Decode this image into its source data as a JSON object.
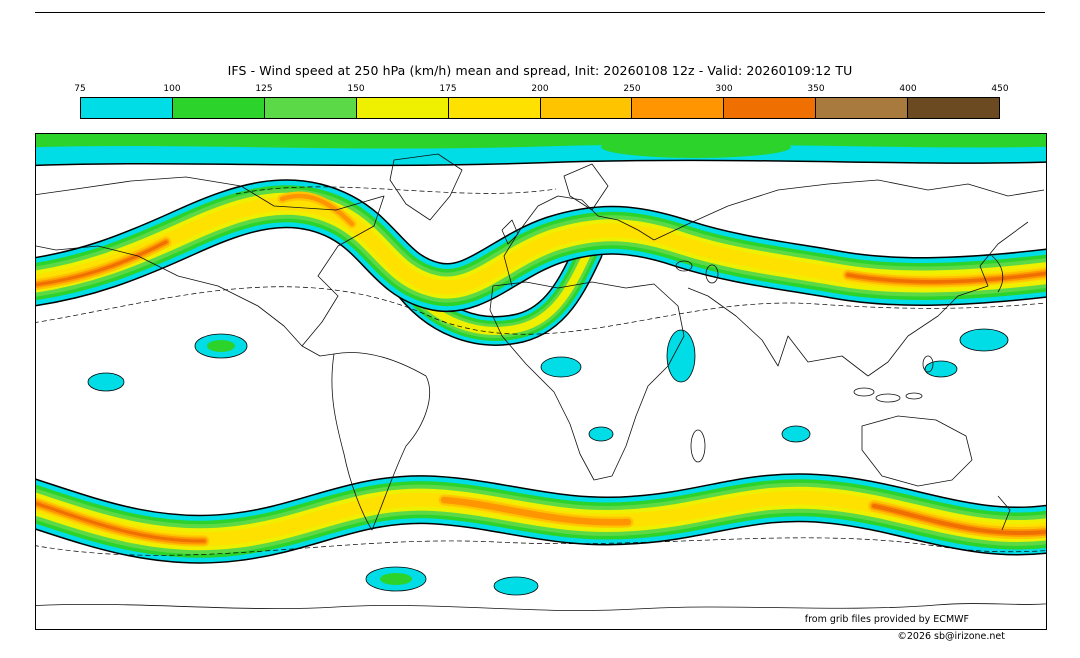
{
  "title": "IFS - Wind speed at 250 hPa (km/h) mean and spread, Init: 20260108 12z - Valid: 20260109:12 TU",
  "colorbar": {
    "tick_labels": [
      "75",
      "100",
      "125",
      "150",
      "175",
      "200",
      "250",
      "300",
      "350",
      "400",
      "450"
    ],
    "colors": [
      "#00dde6",
      "#2bd32b",
      "#5cd947",
      "#eef000",
      "#ffe100",
      "#ffc400",
      "#ff9500",
      "#ef6f00",
      "#a97a3e",
      "#6b4a22"
    ]
  },
  "footer": {
    "credit": "from grib files provided by ECMWF",
    "copyright": "©2026 sb@irizone.net"
  },
  "chart_data": {
    "type": "heatmap",
    "title": "IFS - Wind speed at 250 hPa (km/h) mean and spread, Init: 20260108 12z - Valid: 20260109:12 TU",
    "model": "IFS",
    "variable": "Wind speed at 250 hPa (mean and spread)",
    "units": "km/h",
    "init": "20260108 12z",
    "valid": "20260109:12 TU",
    "projection": "equirectangular world map, coastlines in black, white where wind < 75 km/h",
    "legend_position": "top",
    "grid": false,
    "scale_levels": [
      75,
      100,
      125,
      150,
      175,
      200,
      250,
      300,
      350,
      400,
      450
    ],
    "scale_colors": [
      "#00dde6",
      "#2bd32b",
      "#5cd947",
      "#eef000",
      "#ffe100",
      "#ffc400",
      "#ff9500",
      "#ef6f00",
      "#a97a3e",
      "#6b4a22"
    ],
    "features": [
      {
        "name": "northern-polar-band",
        "description": "green band of 100-150 km/h winds along the northern edge of the map with cyan fringe"
      },
      {
        "name": "northern-jet-stream",
        "description": "sinuous mid-latitude band 75-300 km/h with orange cores (250-300 km/h) at the far west edge, over the North Atlantic and over East Asia / NW Pacific"
      },
      {
        "name": "southern-jet-stream",
        "description": "nearly continuous band 75-300 km/h around 40-55S with orange cores west, over the southern Indian Ocean and southeast of Australia"
      },
      {
        "name": "scattered-patches",
        "description": "isolated cyan/green patches (75-125 km/h) in the tropics and subpolar regions"
      },
      {
        "name": "contours",
        "description": "solid black contour outlining the 75 km/h mean field, dashed black contours for ensemble spread"
      }
    ]
  }
}
